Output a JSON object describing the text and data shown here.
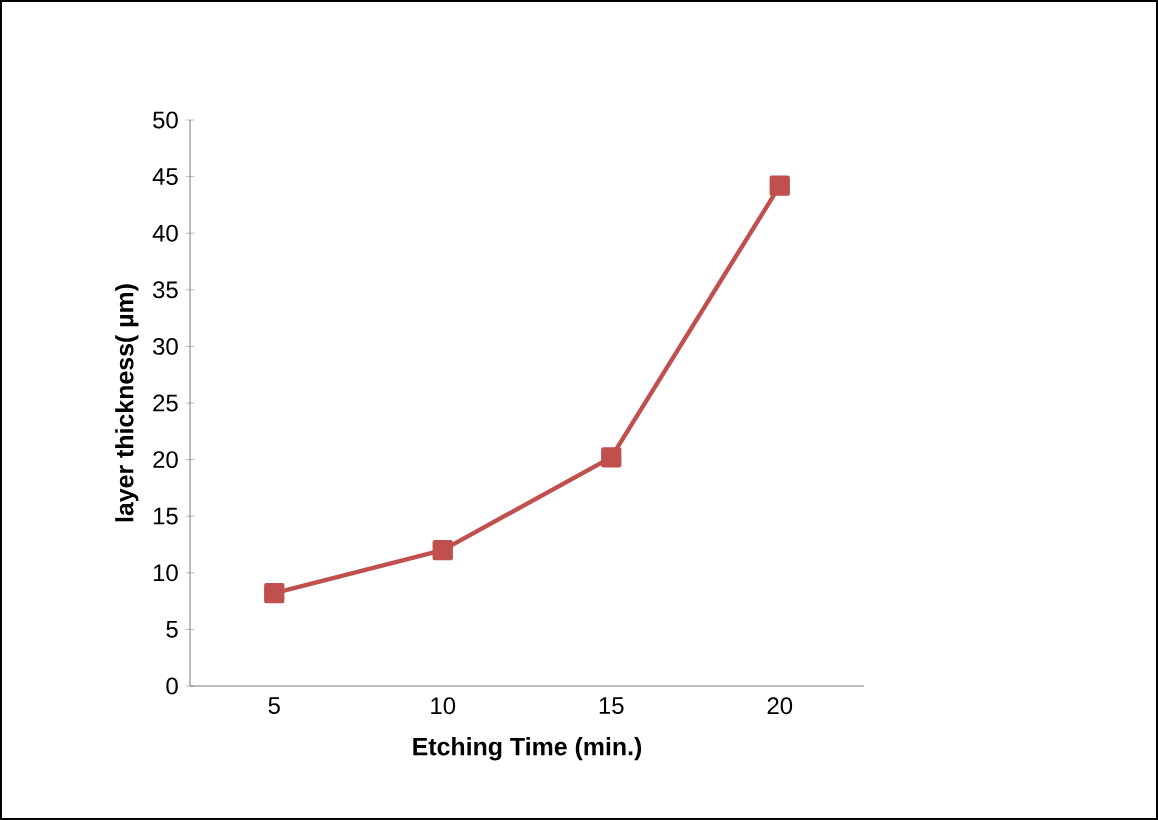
{
  "chart_data": {
    "type": "line",
    "xlabel": "Etching Time (min.)",
    "ylabel": "layer thickness( µm)",
    "categories": [
      "5",
      "10",
      "15",
      "20"
    ],
    "series": [
      {
        "color": "#c0504d",
        "values": [
          8.2,
          12,
          20.2,
          44.2
        ]
      }
    ],
    "ylim": [
      0,
      50
    ],
    "yticks": [
      0,
      5,
      10,
      15,
      20,
      25,
      30,
      35,
      40,
      45,
      50
    ],
    "marker": "square",
    "line_style": "solid",
    "grid": false
  }
}
